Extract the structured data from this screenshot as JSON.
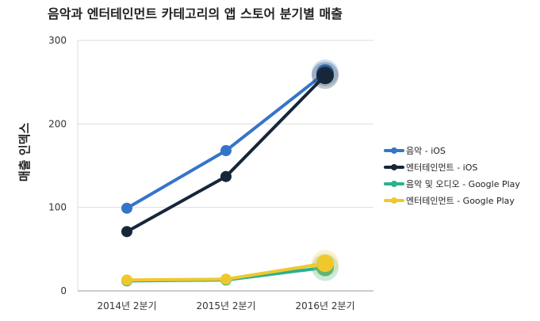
{
  "chart_data": {
    "type": "line",
    "title": "음악과 엔터테인먼트 카테고리의 앱 스토어 분기별 매출",
    "xlabel": "",
    "ylabel": "매출 인덱스",
    "categories": [
      "2014년 2분기",
      "2015년 2분기",
      "2016년 2분기"
    ],
    "ylim": [
      0,
      300
    ],
    "yticks": [
      0,
      100,
      200,
      300
    ],
    "grid": true,
    "legend_position": "right",
    "series": [
      {
        "name": "음악 - iOS",
        "color": "#3575c9",
        "values": [
          99,
          168,
          261
        ]
      },
      {
        "name": "엔터테인먼트 - iOS",
        "color": "#17273a",
        "values": [
          71,
          137,
          258
        ]
      },
      {
        "name": "음악 및 오디오 - Google Play",
        "color": "#2bb08f",
        "values": [
          12,
          13,
          28
        ]
      },
      {
        "name": "엔터테인먼트 - Google Play",
        "color": "#f0c82e",
        "values": [
          13,
          14,
          33
        ]
      }
    ]
  }
}
